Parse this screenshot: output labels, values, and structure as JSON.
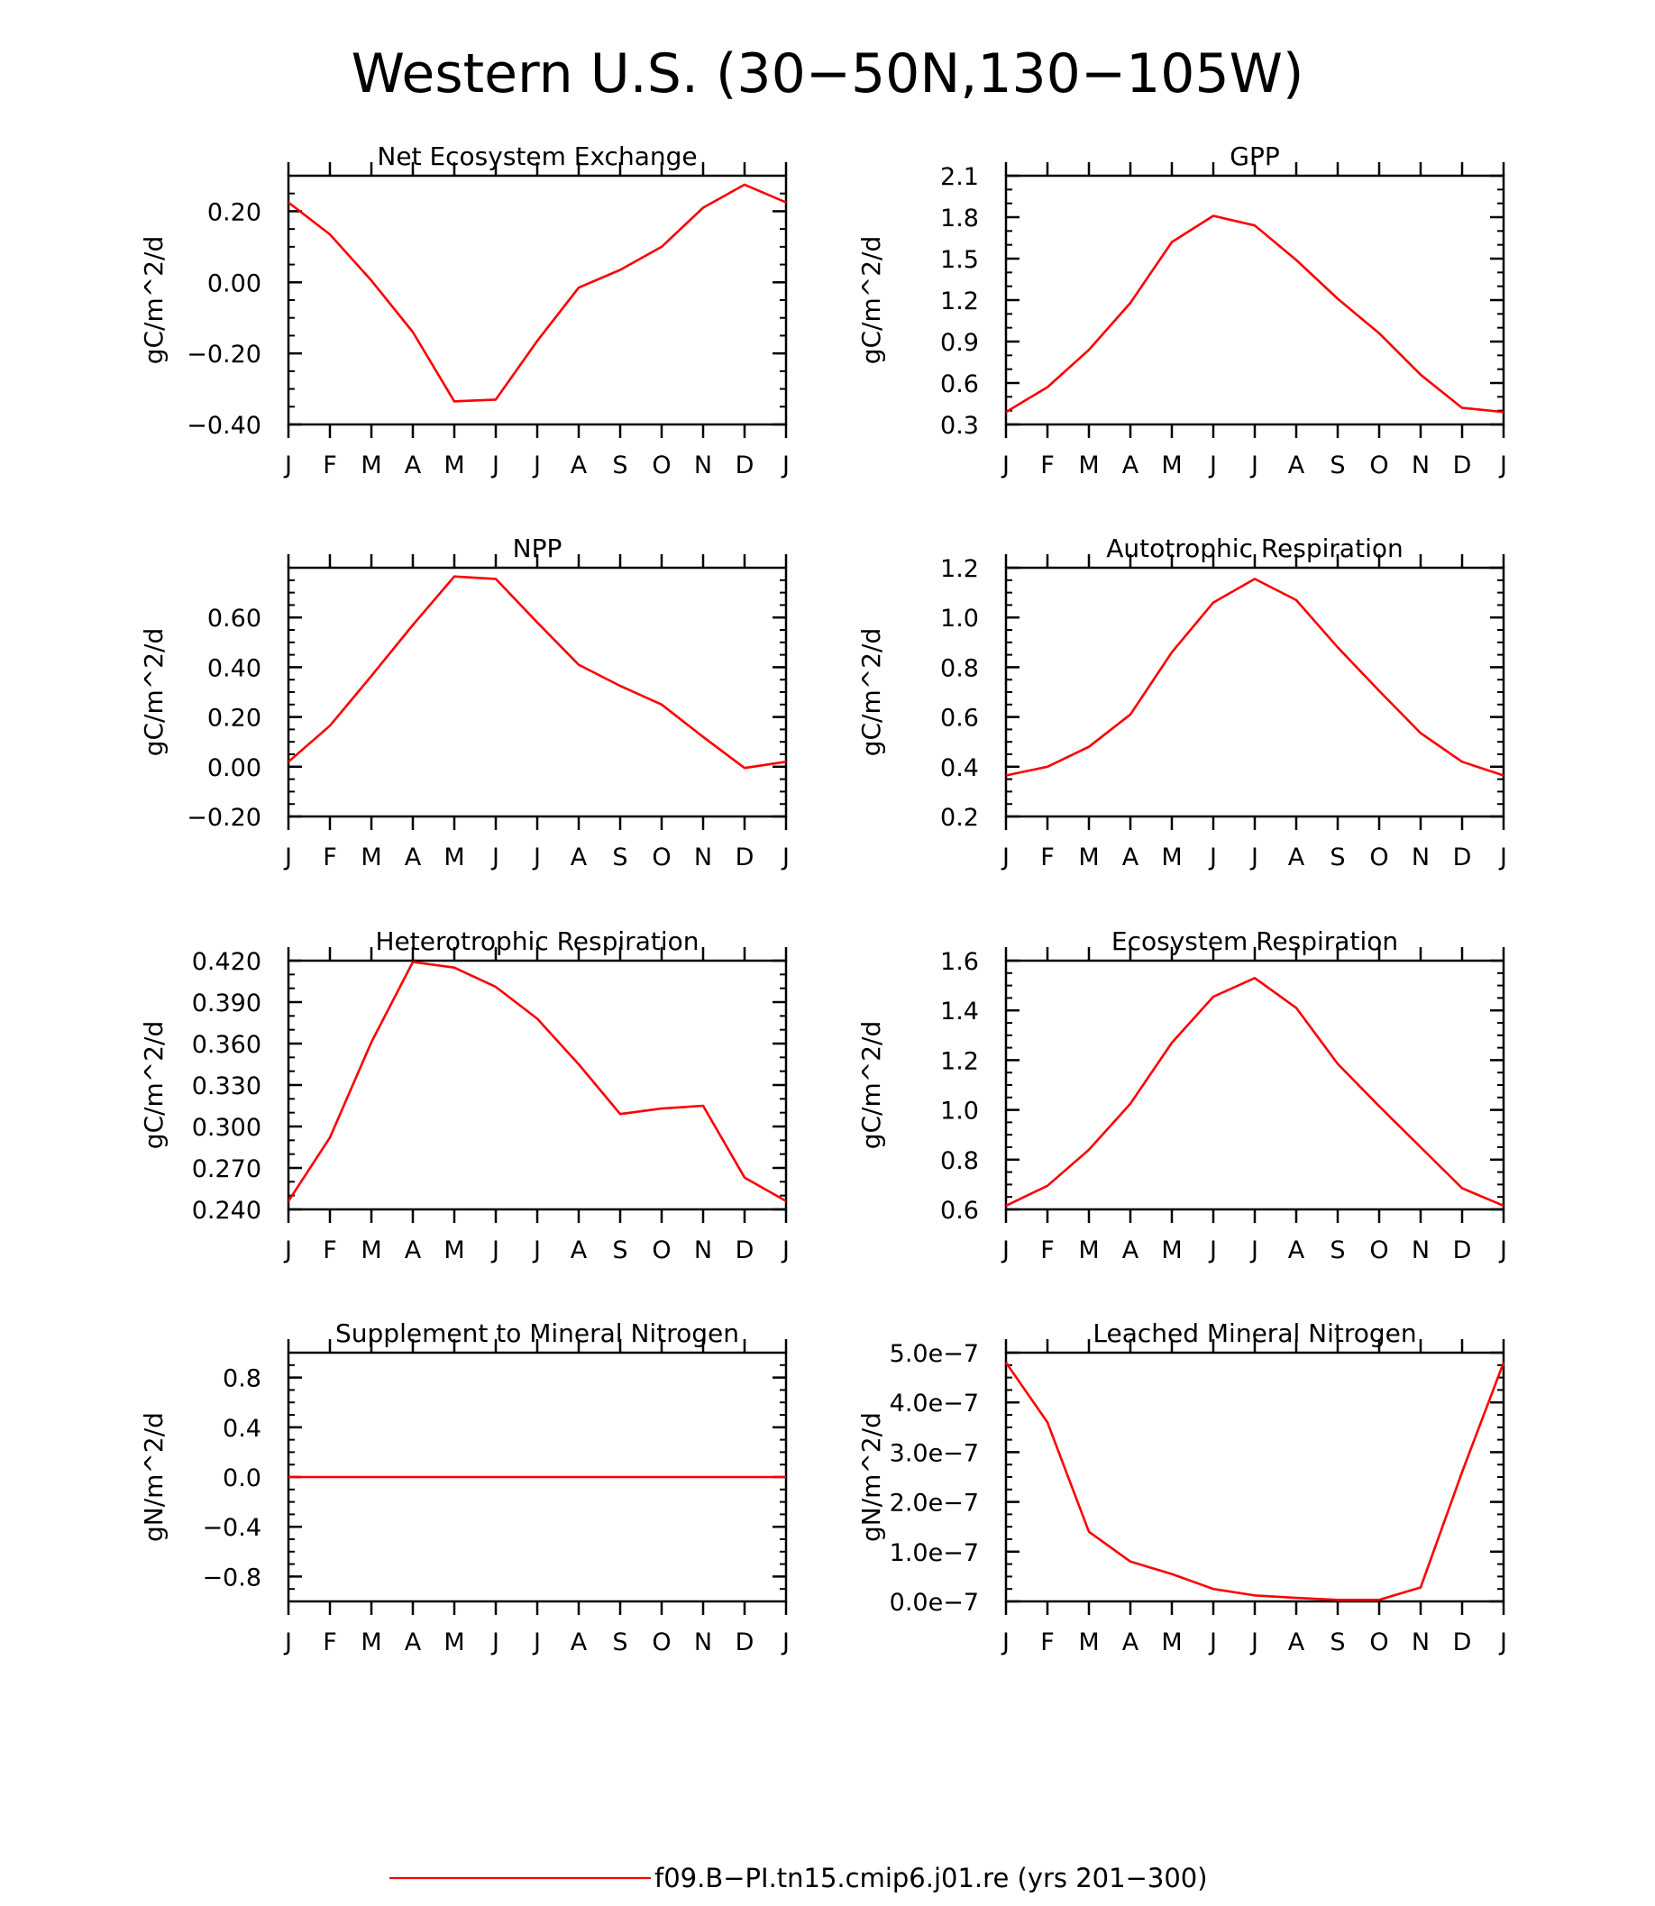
{
  "title": "Western U.S. (30−50N,130−105W)",
  "months": [
    "J",
    "F",
    "M",
    "A",
    "M",
    "J",
    "J",
    "A",
    "S",
    "O",
    "N",
    "D",
    "J"
  ],
  "legend": {
    "label": "f09.B−PI.tn15.cmip6.j01.re (yrs 201−300)",
    "color": "#ff0000"
  },
  "colors": {
    "series": "#ff0000",
    "axis": "#000000"
  },
  "chart_data": [
    {
      "type": "line",
      "title": "Net Ecosystem Exchange",
      "ylabel": "gC/m^2/d",
      "ylim": [
        -0.4,
        0.3
      ],
      "yticks": [
        -0.4,
        -0.2,
        0.0,
        0.2
      ],
      "ytick_labels": [
        "−0.40",
        "−0.20",
        "0.00",
        "0.20"
      ],
      "minor_step": 0.05,
      "values": [
        0.225,
        0.135,
        0.005,
        -0.14,
        -0.335,
        -0.33,
        -0.165,
        -0.015,
        0.035,
        0.1,
        0.21,
        0.275,
        0.225
      ]
    },
    {
      "type": "line",
      "title": "GPP",
      "ylabel": "gC/m^2/d",
      "ylim": [
        0.3,
        2.1
      ],
      "yticks": [
        0.3,
        0.6,
        0.9,
        1.2,
        1.5,
        1.8,
        2.1
      ],
      "ytick_labels": [
        "0.3",
        "0.6",
        "0.9",
        "1.2",
        "1.5",
        "1.8",
        "2.1"
      ],
      "minor_step": 0.1,
      "values": [
        0.39,
        0.57,
        0.84,
        1.18,
        1.62,
        1.81,
        1.74,
        1.49,
        1.21,
        0.96,
        0.66,
        0.42,
        0.39
      ]
    },
    {
      "type": "line",
      "title": "NPP",
      "ylabel": "gC/m^2/d",
      "ylim": [
        -0.2,
        0.8
      ],
      "yticks": [
        -0.2,
        0.0,
        0.2,
        0.4,
        0.6
      ],
      "ytick_labels": [
        "−0.20",
        "0.00",
        "0.20",
        "0.40",
        "0.60"
      ],
      "minor_step": 0.05,
      "values": [
        0.02,
        0.165,
        0.365,
        0.57,
        0.765,
        0.755,
        0.58,
        0.41,
        0.325,
        0.25,
        0.12,
        -0.005,
        0.02
      ]
    },
    {
      "type": "line",
      "title": "Autotrophic Respiration",
      "ylabel": "gC/m^2/d",
      "ylim": [
        0.2,
        1.2
      ],
      "yticks": [
        0.2,
        0.4,
        0.6,
        0.8,
        1.0,
        1.2
      ],
      "ytick_labels": [
        "0.2",
        "0.4",
        "0.6",
        "0.8",
        "1.0",
        "1.2"
      ],
      "minor_step": 0.05,
      "values": [
        0.365,
        0.4,
        0.48,
        0.61,
        0.86,
        1.06,
        1.155,
        1.07,
        0.88,
        0.705,
        0.535,
        0.42,
        0.365
      ]
    },
    {
      "type": "line",
      "title": "Heterotrophic Respiration",
      "ylabel": "gC/m^2/d",
      "ylim": [
        0.24,
        0.42
      ],
      "yticks": [
        0.24,
        0.27,
        0.3,
        0.33,
        0.36,
        0.39,
        0.42
      ],
      "ytick_labels": [
        "0.240",
        "0.270",
        "0.300",
        "0.330",
        "0.360",
        "0.390",
        "0.420"
      ],
      "minor_step": 0.01,
      "values": [
        0.246,
        0.292,
        0.361,
        0.419,
        0.415,
        0.401,
        0.378,
        0.345,
        0.309,
        0.313,
        0.315,
        0.263,
        0.246
      ]
    },
    {
      "type": "line",
      "title": "Ecosystem Respiration",
      "ylabel": "gC/m^2/d",
      "ylim": [
        0.6,
        1.6
      ],
      "yticks": [
        0.6,
        0.8,
        1.0,
        1.2,
        1.4,
        1.6
      ],
      "ytick_labels": [
        "0.6",
        "0.8",
        "1.0",
        "1.2",
        "1.4",
        "1.6"
      ],
      "minor_step": 0.05,
      "values": [
        0.615,
        0.695,
        0.84,
        1.025,
        1.27,
        1.455,
        1.53,
        1.41,
        1.185,
        1.015,
        0.85,
        0.685,
        0.615
      ]
    },
    {
      "type": "line",
      "title": "Supplement to Mineral Nitrogen",
      "ylabel": "gN/m^2/d",
      "ylim": [
        -1.0,
        1.0
      ],
      "yticks": [
        -0.8,
        -0.4,
        0.0,
        0.4,
        0.8
      ],
      "ytick_labels": [
        "−0.8",
        "−0.4",
        "0.0",
        "0.4",
        "0.8"
      ],
      "minor_step": 0.1,
      "values": [
        0,
        0,
        0,
        0,
        0,
        0,
        0,
        0,
        0,
        0,
        0,
        0,
        0
      ]
    },
    {
      "type": "line",
      "title": "Leached Mineral Nitrogen",
      "ylabel": "gN/m^2/d",
      "ylim": [
        0,
        5e-07
      ],
      "yticks": [
        0,
        1e-07,
        2e-07,
        3e-07,
        4e-07,
        5e-07
      ],
      "ytick_labels": [
        "0.0e−7",
        "1.0e−7",
        "2.0e−7",
        "3.0e−7",
        "4.0e−7",
        "5.0e−7"
      ],
      "minor_step": 2.5e-08,
      "values": [
        4.8e-07,
        3.6e-07,
        1.4e-07,
        8e-08,
        5.5e-08,
        2.5e-08,
        1.2e-08,
        7e-09,
        3e-09,
        3e-09,
        2.8e-08,
        2.6e-07,
        4.8e-07
      ]
    }
  ]
}
